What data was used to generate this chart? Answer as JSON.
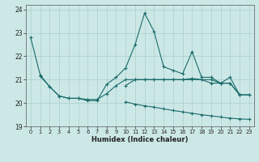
{
  "xlabel": "Humidex (Indice chaleur)",
  "bg_color": "#cce8e6",
  "line_color": "#1a6b6b",
  "grid_color": "#aacfcd",
  "ylim": [
    19,
    24.2
  ],
  "xlim": [
    -0.5,
    23.5
  ],
  "yticks": [
    19,
    20,
    21,
    22,
    23,
    24
  ],
  "xtick_labels": [
    "0",
    "1",
    "2",
    "3",
    "4",
    "5",
    "6",
    "7",
    "8",
    "9",
    "10",
    "11",
    "12",
    "13",
    "14",
    "15",
    "16",
    "17",
    "18",
    "19",
    "20",
    "21",
    "22",
    "23"
  ],
  "series": [
    {
      "x": [
        0,
        1,
        2,
        3,
        4,
        5,
        6,
        7,
        8,
        9,
        10,
        11,
        12,
        13,
        14,
        15,
        16,
        17,
        18,
        19,
        20,
        21,
        22,
        23
      ],
      "y": [
        22.8,
        21.2,
        20.7,
        20.3,
        20.2,
        20.2,
        20.1,
        20.1,
        20.8,
        21.1,
        21.5,
        22.5,
        23.85,
        23.05,
        21.55,
        21.4,
        21.25,
        22.2,
        21.1,
        21.1,
        20.85,
        21.1,
        20.35,
        20.35
      ]
    },
    {
      "x": [
        1,
        2,
        3,
        4,
        5,
        6,
        7,
        8,
        9,
        10,
        11,
        12,
        13,
        14,
        15,
        16,
        17,
        18,
        19,
        20,
        21,
        22
      ],
      "y": [
        21.15,
        20.7,
        20.3,
        20.2,
        20.2,
        20.15,
        20.15,
        20.4,
        20.75,
        21.0,
        21.0,
        21.0,
        21.0,
        21.0,
        21.0,
        21.0,
        21.05,
        21.0,
        21.0,
        20.85,
        20.85,
        20.35
      ]
    },
    {
      "x": [
        10,
        11,
        12,
        13,
        14,
        15,
        16,
        17,
        18,
        19,
        20,
        21,
        22,
        23
      ],
      "y": [
        20.05,
        19.95,
        19.88,
        19.82,
        19.75,
        19.68,
        19.62,
        19.56,
        19.5,
        19.45,
        19.4,
        19.35,
        19.32,
        19.3
      ]
    },
    {
      "x": [
        10,
        11,
        12,
        13,
        14,
        15,
        16,
        17,
        18,
        19,
        20,
        21,
        22,
        23
      ],
      "y": [
        20.75,
        21.0,
        21.0,
        21.0,
        21.0,
        21.0,
        21.0,
        21.0,
        21.0,
        20.85,
        20.85,
        20.85,
        20.35,
        20.35
      ]
    }
  ]
}
